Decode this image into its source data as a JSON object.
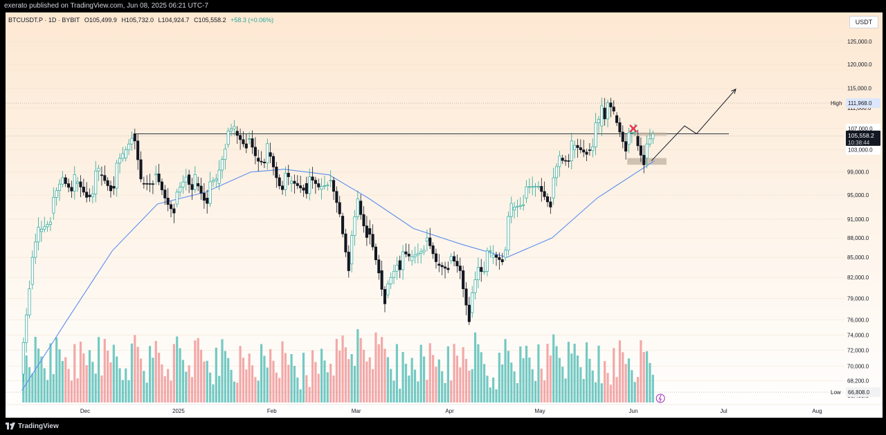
{
  "header": {
    "published": "exerato published on TradingView.com, Jun 08, 2025 06:21 UTC-7"
  },
  "symbol": {
    "name": "BTCUSDT.P · 1D · BYBIT",
    "open": "O105,499.9",
    "high": "H105,732.0",
    "low": "L104,924.7",
    "close": "C105,558.2",
    "change": "+58.3 (+0.06%)"
  },
  "currency": "USDT",
  "footer": {
    "brand": "TradingView"
  },
  "colors": {
    "up": "#26a69a",
    "down": "#131722",
    "ma": "#5b8def",
    "vol_up": "#5cc0b8",
    "vol_down": "#f09a9a",
    "marker": "#e53950"
  },
  "chart_data": {
    "type": "candlestick",
    "title": "",
    "y_axis": {
      "scale": "log",
      "ticks": [
        "125,000.0",
        "120,000.0",
        "115,000.0",
        "111,000.0",
        "107,000.0",
        "103,000.0",
        "99,000.0",
        "95,000.0",
        "91,000.0",
        "88,000.0",
        "85,000.0",
        "82,000.0",
        "79,000.0",
        "76,000.0",
        "74,000.0",
        "72,000.0",
        "70,000.0",
        "68,200.0",
        "66,400.0"
      ]
    },
    "x_axis": {
      "ticks": [
        "Dec",
        "2025",
        "Feb",
        "Mar",
        "Apr",
        "May",
        "Jun",
        "Jul",
        "Aug"
      ]
    },
    "price_labels": {
      "high_label": "High",
      "high_value": "111,968.0",
      "low_label": "Low",
      "low_value": "66,808.0",
      "last_price": "105,558.2",
      "countdown": "10:38:44",
      "resistance": "107,000.0",
      "support": "103,000.0"
    },
    "resistance_level": 106000,
    "series_close": [
      {
        "date": "2024-11-10",
        "close": 69000
      },
      {
        "date": "2024-11-13",
        "close": 81000
      },
      {
        "date": "2024-11-16",
        "close": 89000
      },
      {
        "date": "2024-11-20",
        "close": 92000
      },
      {
        "date": "2024-11-24",
        "close": 98000
      },
      {
        "date": "2024-11-28",
        "close": 97000
      },
      {
        "date": "2024-12-02",
        "close": 95000
      },
      {
        "date": "2024-12-06",
        "close": 98500
      },
      {
        "date": "2024-12-10",
        "close": 96500
      },
      {
        "date": "2024-12-14",
        "close": 101500
      },
      {
        "date": "2024-12-17",
        "close": 106000
      },
      {
        "date": "2024-12-20",
        "close": 97000
      },
      {
        "date": "2024-12-24",
        "close": 98500
      },
      {
        "date": "2024-12-28",
        "close": 94500
      },
      {
        "date": "2024-12-31",
        "close": 93500
      },
      {
        "date": "2025-01-04",
        "close": 98500
      },
      {
        "date": "2025-01-07",
        "close": 97000
      },
      {
        "date": "2025-01-10",
        "close": 94500
      },
      {
        "date": "2025-01-14",
        "close": 97000
      },
      {
        "date": "2025-01-17",
        "close": 104000
      },
      {
        "date": "2025-01-20",
        "close": 106500
      },
      {
        "date": "2025-01-24",
        "close": 105000
      },
      {
        "date": "2025-01-27",
        "close": 101500
      },
      {
        "date": "2025-01-31",
        "close": 102500
      },
      {
        "date": "2025-02-03",
        "close": 98000
      },
      {
        "date": "2025-02-07",
        "close": 97000
      },
      {
        "date": "2025-02-12",
        "close": 97000
      },
      {
        "date": "2025-02-17",
        "close": 96000
      },
      {
        "date": "2025-02-20",
        "close": 97500
      },
      {
        "date": "2025-02-24",
        "close": 91500
      },
      {
        "date": "2025-02-27",
        "close": 84000
      },
      {
        "date": "2025-03-02",
        "close": 94000
      },
      {
        "date": "2025-03-05",
        "close": 89500
      },
      {
        "date": "2025-03-09",
        "close": 83000
      },
      {
        "date": "2025-03-11",
        "close": 79500
      },
      {
        "date": "2025-03-15",
        "close": 84500
      },
      {
        "date": "2025-03-19",
        "close": 84500
      },
      {
        "date": "2025-03-24",
        "close": 87500
      },
      {
        "date": "2025-03-28",
        "close": 84000
      },
      {
        "date": "2025-04-01",
        "close": 84500
      },
      {
        "date": "2025-04-05",
        "close": 83000
      },
      {
        "date": "2025-04-08",
        "close": 77000
      },
      {
        "date": "2025-04-11",
        "close": 83500
      },
      {
        "date": "2025-04-15",
        "close": 85000
      },
      {
        "date": "2025-04-19",
        "close": 85000
      },
      {
        "date": "2025-04-22",
        "close": 92500
      },
      {
        "date": "2025-04-26",
        "close": 94500
      },
      {
        "date": "2025-05-01",
        "close": 96500
      },
      {
        "date": "2025-05-05",
        "close": 94500
      },
      {
        "date": "2025-05-08",
        "close": 101500
      },
      {
        "date": "2025-05-12",
        "close": 103000
      },
      {
        "date": "2025-05-17",
        "close": 103000
      },
      {
        "date": "2025-05-21",
        "close": 107500
      },
      {
        "date": "2025-05-22",
        "close": 111000
      },
      {
        "date": "2025-05-26",
        "close": 109500
      },
      {
        "date": "2025-05-30",
        "close": 104000
      },
      {
        "date": "2025-06-02",
        "close": 105500
      },
      {
        "date": "2025-06-05",
        "close": 101500
      },
      {
        "date": "2025-06-08",
        "close": 105558
      }
    ],
    "ma_line": [
      {
        "date": "2024-11-10",
        "value": 67000
      },
      {
        "date": "2024-11-25",
        "value": 76000
      },
      {
        "date": "2024-12-10",
        "value": 86000
      },
      {
        "date": "2024-12-25",
        "value": 93500
      },
      {
        "date": "2025-01-10",
        "value": 95500
      },
      {
        "date": "2025-01-25",
        "value": 99000
      },
      {
        "date": "2025-02-05",
        "value": 99500
      },
      {
        "date": "2025-02-20",
        "value": 98500
      },
      {
        "date": "2025-03-05",
        "value": 94500
      },
      {
        "date": "2025-03-20",
        "value": 89500
      },
      {
        "date": "2025-04-05",
        "value": 87000
      },
      {
        "date": "2025-04-20",
        "value": 85000
      },
      {
        "date": "2025-05-05",
        "value": 88000
      },
      {
        "date": "2025-05-20",
        "value": 94500
      },
      {
        "date": "2025-06-08",
        "value": 101000
      }
    ],
    "projection": [
      {
        "date": "2025-06-07",
        "value": 101000
      },
      {
        "date": "2025-06-18",
        "value": 107500
      },
      {
        "date": "2025-06-22",
        "value": 106000
      },
      {
        "date": "2025-07-05",
        "value": 114800
      }
    ],
    "rejection_marker": {
      "date": "2025-06-01",
      "value": 107000
    },
    "support_box": {
      "from": "2025-05-30",
      "to": "2025-06-12",
      "low": 100300,
      "high": 101500
    },
    "supply_box": {
      "from": "2025-06-01",
      "to": "2025-06-12",
      "low": 105600,
      "high": 106300
    }
  }
}
